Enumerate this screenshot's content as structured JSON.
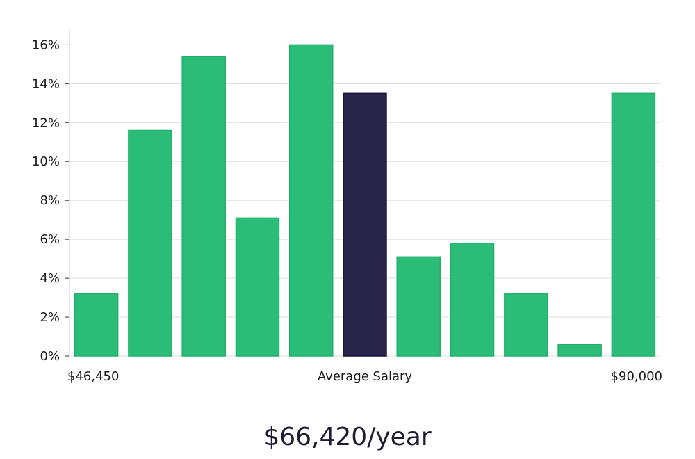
{
  "chart_data": {
    "type": "bar",
    "title": "",
    "xlabel": "",
    "ylabel": "",
    "ylim": [
      0,
      16.8
    ],
    "yticks": [
      0,
      2,
      4,
      6,
      8,
      10,
      12,
      14,
      16
    ],
    "ytick_suffix": "%",
    "grid": true,
    "values": [
      3.2,
      11.6,
      15.4,
      7.1,
      16.0,
      13.5,
      5.1,
      5.8,
      3.2,
      0.6,
      13.5
    ],
    "highlight_index": 5,
    "x_labels": {
      "left": "$46,450",
      "center": "Average Salary",
      "right": "$90,000"
    },
    "colors": {
      "bar": "#2bbd77",
      "highlight": "#28244a",
      "grid": "#dddddd",
      "axis": "#cccccc"
    }
  },
  "salary_label": "$66,420/year"
}
